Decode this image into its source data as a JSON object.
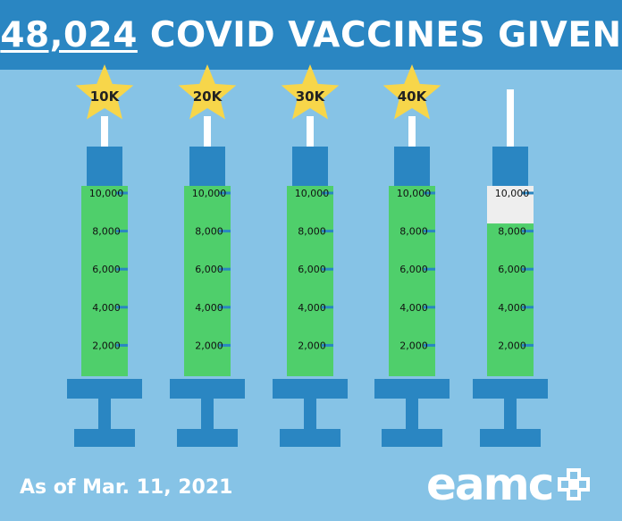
{
  "header": {
    "count": "48,024",
    "title": "COVID VACCINES GIVEN"
  },
  "footer": {
    "date": "As of Mar. 11, 2021",
    "logo_text": "eamc"
  },
  "colors": {
    "background": "#86c3e6",
    "header": "#2a86c2",
    "syringe_blue": "#2a86c2",
    "fill_green": "#4fcf6b",
    "empty_white": "#eeeeee",
    "star": "#f7d64a",
    "plunger_rod": "#ffffff"
  },
  "chart_data": {
    "type": "bar",
    "title": "48,024 COVID VACCINES GIVEN",
    "categories": [
      "10K",
      "20K",
      "30K",
      "40K",
      ""
    ],
    "values": [
      10000,
      10000,
      10000,
      10000,
      8024
    ],
    "ylim": [
      0,
      10000
    ],
    "yticks": [
      "2,000",
      "4,000",
      "6,000",
      "8,000",
      "10,000"
    ],
    "milestone_labels": [
      "10K",
      "20K",
      "30K",
      "40K"
    ],
    "footnote": "As of Mar. 11, 2021"
  }
}
